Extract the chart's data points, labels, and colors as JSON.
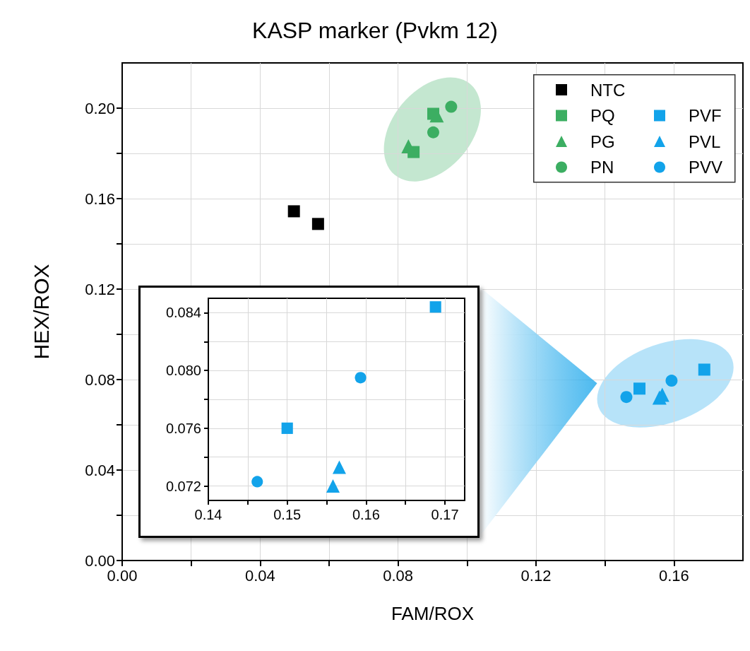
{
  "chart_data": [
    {
      "type": "scatter",
      "title": "KASP marker (Pvkm 12)",
      "xlabel": "FAM/ROX",
      "ylabel": "HEX/ROX",
      "xlim": [
        0,
        0.18
      ],
      "ylim": [
        0,
        0.22
      ],
      "xticks": [
        {
          "value": 0,
          "label": "0.00"
        },
        {
          "value": 0.02,
          "label": null
        },
        0.04,
        {
          "value": 0.06,
          "label": null
        },
        0.08,
        {
          "value": 0.1,
          "label": null
        },
        0.12,
        {
          "value": 0.14,
          "label": null
        },
        0.16
      ],
      "yticks": [
        {
          "value": 0,
          "label": "0.00"
        },
        {
          "value": 0.02,
          "label": null
        },
        0.04,
        {
          "value": 0.06,
          "label": null
        },
        0.08,
        {
          "value": 0.1,
          "label": null
        },
        0.12,
        {
          "value": 0.14,
          "label": null
        },
        0.16,
        {
          "value": 0.18,
          "label": null
        },
        {
          "value": 0.2,
          "label": "0.20"
        }
      ],
      "grid": true,
      "legend": "top right",
      "series": [
        {
          "name": "NTC",
          "color": "#000000",
          "marker": "square",
          "x": [
            0.0498,
            0.0568
          ],
          "values": [
            0.1544,
            0.1488
          ]
        },
        {
          "name": "PQ",
          "color": "#3cae62",
          "marker": "square",
          "x": [
            0.0902,
            0.0845
          ],
          "values": [
            0.1975,
            0.1806
          ]
        },
        {
          "name": "PG",
          "color": "#3cae62",
          "marker": "triangle",
          "x": [
            0.0912,
            0.083
          ],
          "values": [
            0.1968,
            0.1831
          ]
        },
        {
          "name": "PN",
          "color": "#3cae62",
          "marker": "circle",
          "x": [
            0.0954,
            0.0902
          ],
          "values": [
            0.2006,
            0.1893
          ]
        },
        {
          "name": "PVF",
          "color": "#12a3ea",
          "marker": "square",
          "x": [
            0.15,
            0.1688
          ],
          "values": [
            0.076,
            0.0844
          ]
        },
        {
          "name": "PVL",
          "color": "#12a3ea",
          "marker": "triangle",
          "x": [
            0.1558,
            0.1566
          ],
          "values": [
            0.072,
            0.0733
          ]
        },
        {
          "name": "PVV",
          "color": "#12a3ea",
          "marker": "circle",
          "x": [
            0.1462,
            0.1593
          ],
          "values": [
            0.0723,
            0.0795
          ]
        }
      ]
    },
    {
      "type": "scatter",
      "xlim": [
        0.14,
        0.1725
      ],
      "ylim": [
        0.071,
        0.085
      ],
      "xticks": [
        0.14,
        {
          "value": 0.145,
          "label": null
        },
        0.15,
        {
          "value": 0.155,
          "label": null
        },
        0.16,
        {
          "value": 0.165,
          "label": null
        },
        0.17
      ],
      "yticks": [
        0.072,
        {
          "value": 0.074,
          "label": null
        },
        0.076,
        {
          "value": 0.078,
          "label": null
        },
        {
          "value": 0.08,
          "label": "0.080"
        },
        {
          "value": 0.082,
          "label": null
        },
        0.084
      ],
      "grid": true,
      "series": [
        {
          "color": "#12a3ea",
          "marker": "square",
          "x": [
            0.15,
            0.1688
          ],
          "values": [
            0.076,
            0.0844
          ]
        },
        {
          "color": "#12a3ea",
          "marker": "triangle",
          "x": [
            0.1558,
            0.1566
          ],
          "values": [
            0.072,
            0.0733
          ]
        },
        {
          "color": "#12a3ea",
          "marker": "circle",
          "x": [
            0.1462,
            0.1593
          ],
          "values": [
            0.0723,
            0.0795
          ]
        }
      ]
    }
  ]
}
